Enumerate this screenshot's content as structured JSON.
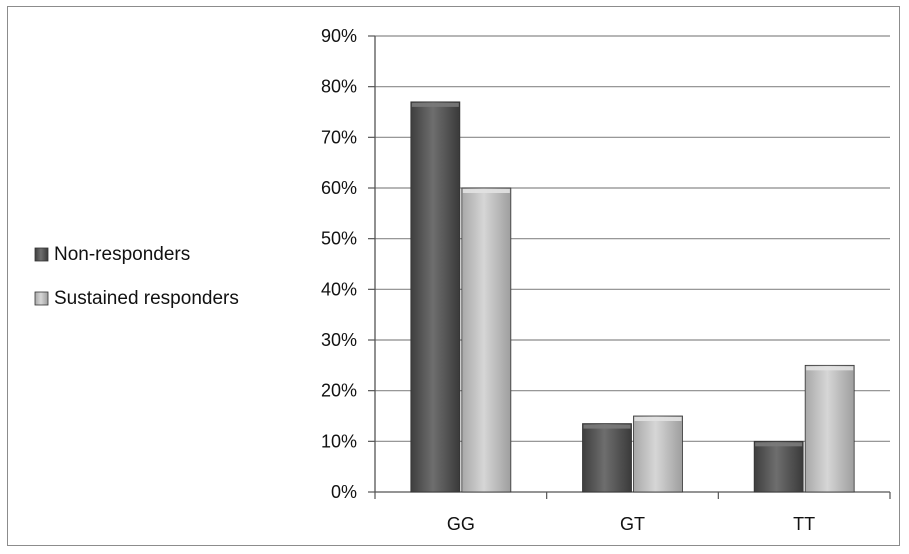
{
  "chart_data": {
    "type": "bar",
    "categories": [
      "GG",
      "GT",
      "TT"
    ],
    "series": [
      {
        "name": "Non-responders",
        "values": [
          77,
          13.5,
          10
        ],
        "color": "#5a5a5a"
      },
      {
        "name": "Sustained responders",
        "values": [
          60,
          15,
          25
        ],
        "color": "#bdbdbd"
      }
    ],
    "ylim": [
      0,
      90
    ],
    "yticks": [
      0,
      10,
      20,
      30,
      40,
      50,
      60,
      70,
      80,
      90
    ],
    "ytick_labels": [
      "0%",
      "10%",
      "20%",
      "30%",
      "40%",
      "50%",
      "60%",
      "70%",
      "80%",
      "90%"
    ],
    "grid": true,
    "legend_position": "left",
    "title": "",
    "xlabel": "",
    "ylabel": ""
  }
}
